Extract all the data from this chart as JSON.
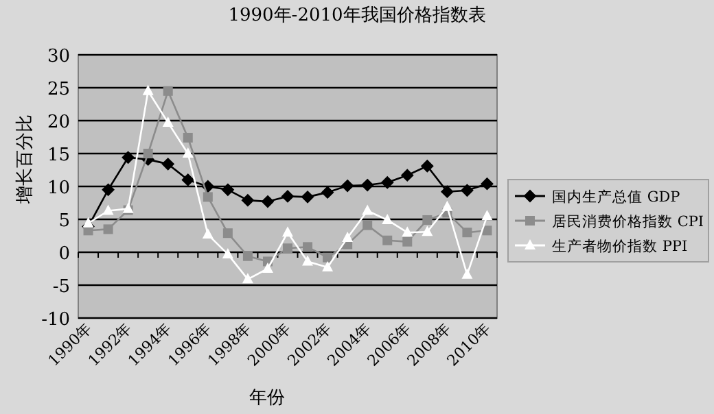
{
  "chart_data": {
    "type": "line",
    "title": "1990年-2010年我国价格指数表",
    "xlabel": "年份",
    "ylabel": "增长百分比",
    "categories": [
      "1990年",
      null,
      "1992年",
      null,
      "1994年",
      null,
      "1996年",
      null,
      "1998年",
      null,
      "2000年",
      null,
      "2002年",
      null,
      "2004年",
      null,
      "2006年",
      null,
      "2008年",
      null,
      "2010年"
    ],
    "series": [
      {
        "name": "国内生产总值 GDP",
        "color": "#000000",
        "marker": "diamond",
        "values": [
          3.9,
          9.5,
          14.4,
          14.1,
          13.4,
          11.0,
          10.0,
          9.5,
          7.9,
          7.7,
          8.5,
          8.4,
          9.1,
          10.1,
          10.2,
          10.6,
          11.7,
          13.1,
          9.2,
          9.4,
          10.4
        ]
      },
      {
        "name": "居民消费价格指数 CPI",
        "color": "#8c8c8c",
        "marker": "square",
        "values": [
          3.3,
          3.5,
          6.4,
          15.0,
          24.5,
          17.4,
          8.4,
          2.9,
          -0.6,
          -1.4,
          0.6,
          0.8,
          -0.8,
          1.2,
          4.1,
          1.8,
          1.6,
          4.9,
          6.0,
          3.0,
          3.3
        ]
      },
      {
        "name": "生产者物价指数 PPI",
        "color": "#ffffff",
        "marker": "triangle",
        "values": [
          4.4,
          6.3,
          6.6,
          24.5,
          19.7,
          15.0,
          2.7,
          -0.3,
          -4.1,
          -2.5,
          3.0,
          -1.4,
          -2.3,
          2.2,
          6.3,
          4.9,
          3.0,
          3.1,
          6.9,
          -3.4,
          5.5
        ]
      }
    ],
    "ylim": [
      -10,
      30
    ],
    "yticks": [
      -10,
      -5,
      0,
      5,
      10,
      15,
      20,
      25,
      30
    ],
    "grid": "y",
    "legend": "right"
  }
}
